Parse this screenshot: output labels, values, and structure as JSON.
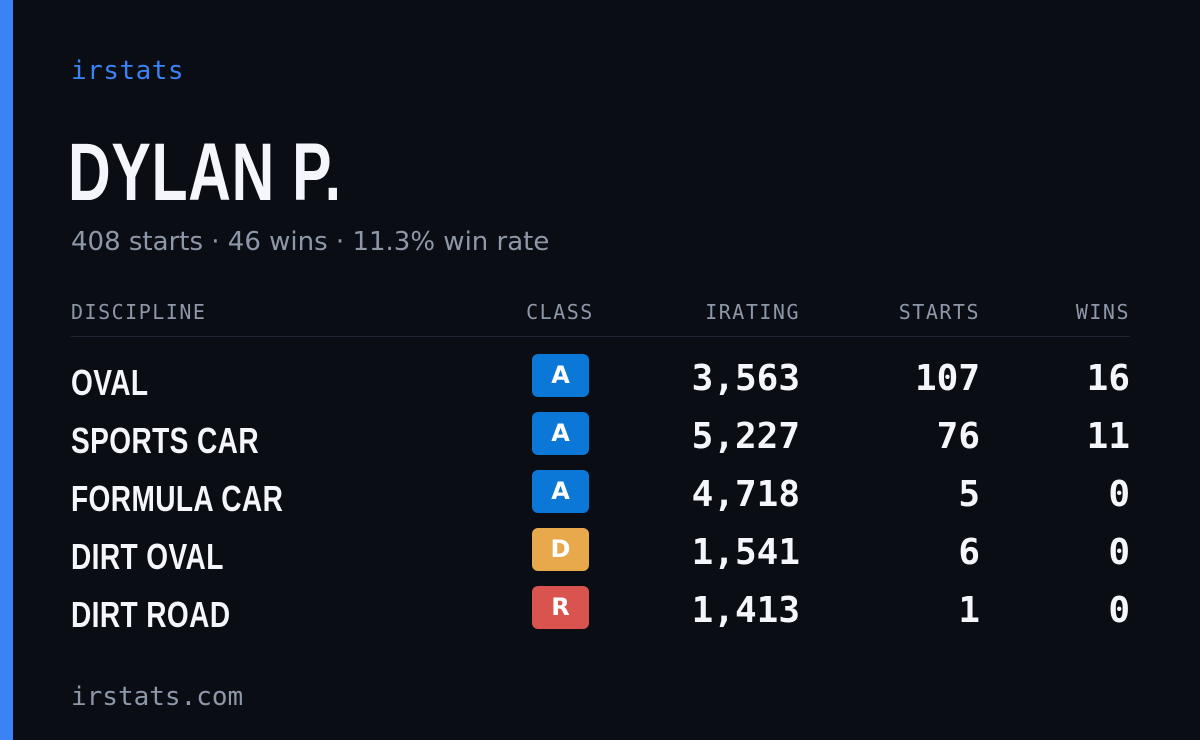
{
  "brand": "irstats",
  "driver": {
    "name": "DYLAN P.",
    "summary": "408 starts · 46 wins · 11.3% win rate"
  },
  "table": {
    "headers": {
      "discipline": "DISCIPLINE",
      "class": "CLASS",
      "irating": "IRATING",
      "starts": "STARTS",
      "wins": "WINS"
    },
    "rows": [
      {
        "discipline": "OVAL",
        "class": "A",
        "class_color": "#0b78d8",
        "irating": "3,563",
        "starts": "107",
        "wins": "16"
      },
      {
        "discipline": "SPORTS CAR",
        "class": "A",
        "class_color": "#0b78d8",
        "irating": "5,227",
        "starts": "76",
        "wins": "11"
      },
      {
        "discipline": "FORMULA CAR",
        "class": "A",
        "class_color": "#0b78d8",
        "irating": "4,718",
        "starts": "5",
        "wins": "0"
      },
      {
        "discipline": "DIRT OVAL",
        "class": "D",
        "class_color": "#e8a94c",
        "irating": "1,541",
        "starts": "6",
        "wins": "0"
      },
      {
        "discipline": "DIRT ROAD",
        "class": "R",
        "class_color": "#d9534f",
        "irating": "1,413",
        "starts": "1",
        "wins": "0"
      }
    ]
  },
  "footer": "irstats.com",
  "colors": {
    "accent": "#3b82f6",
    "background": "#0a0d14",
    "muted_text": "#8e97a8",
    "primary_text": "#f4f6fb"
  }
}
